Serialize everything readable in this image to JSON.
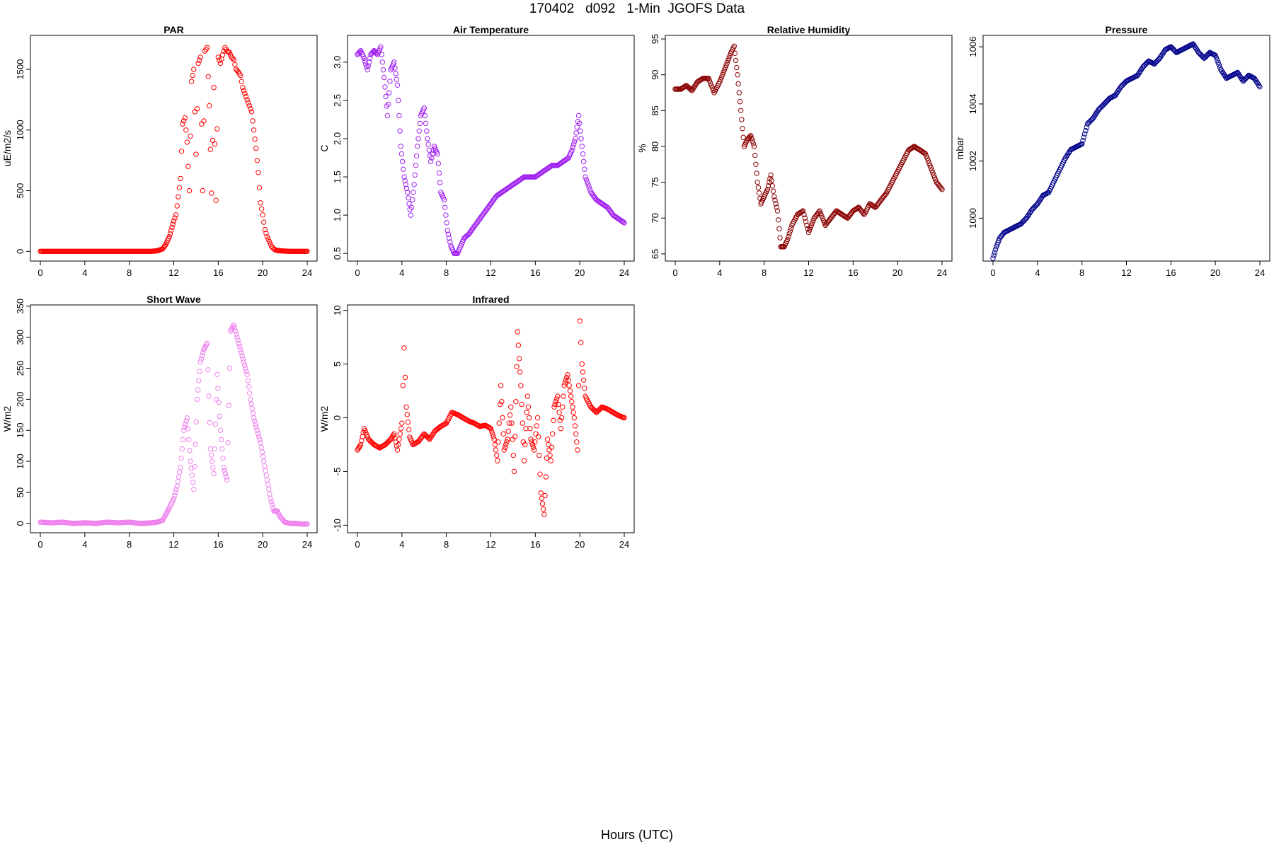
{
  "title": "170402   d092   1-Min  JGOFS Data",
  "xlabel": "Hours (UTC)",
  "colors": {
    "red": "#ff0000",
    "purple": "#a020f0",
    "darkred": "#8b0000",
    "navy": "#00008b",
    "violet": "#ee82ee"
  },
  "chart_data": [
    {
      "type": "scatter",
      "title": "PAR",
      "ylabel": "uE/m2/s",
      "color": "#ff0000",
      "xlim": [
        0,
        24
      ],
      "xticks": [
        0,
        4,
        8,
        12,
        16,
        20,
        24
      ],
      "ylim": [
        -80,
        1780
      ],
      "yticks": [
        0,
        500,
        1000,
        1500
      ],
      "x": [
        0,
        1,
        2,
        3,
        4,
        5,
        6,
        7,
        8,
        9,
        10,
        10.5,
        11,
        11.3,
        11.6,
        12,
        12.2,
        12.4,
        12.6,
        12.8,
        13,
        13.2,
        13.4,
        13.6,
        13.8,
        14,
        14.2,
        14.4,
        14.6,
        14.8,
        15,
        15.2,
        15.4,
        15.6,
        15.8,
        16,
        16.2,
        16.4,
        16.6,
        16.8,
        17,
        17.2,
        17.4,
        17.6,
        17.8,
        18,
        18.2,
        18.4,
        18.6,
        18.8,
        19,
        19.2,
        19.4,
        19.6,
        19.8,
        20,
        20.2,
        20.4,
        20.6,
        20.8,
        21,
        21.2,
        21.5,
        22,
        22.5,
        23,
        23.5,
        24
      ],
      "y": [
        0,
        0,
        0,
        0,
        0,
        0,
        0,
        0,
        0,
        0,
        0,
        5,
        20,
        60,
        120,
        250,
        300,
        450,
        600,
        1050,
        1100,
        900,
        500,
        1400,
        1500,
        800,
        1550,
        1600,
        500,
        1650,
        1680,
        1200,
        480,
        1350,
        420,
        1600,
        1550,
        1620,
        1680,
        1650,
        1640,
        1600,
        1580,
        1500,
        1480,
        1450,
        1350,
        1300,
        1250,
        1200,
        1150,
        1000,
        850,
        650,
        400,
        300,
        180,
        120,
        80,
        40,
        20,
        10,
        5,
        2,
        0,
        0,
        0,
        0
      ]
    },
    {
      "type": "scatter",
      "title": "Air Temperature",
      "ylabel": "C",
      "color": "#a020f0",
      "xlim": [
        0,
        24
      ],
      "xticks": [
        0,
        4,
        8,
        12,
        16,
        20,
        24
      ],
      "ylim": [
        0.4,
        3.35
      ],
      "yticks": [
        0.5,
        1.0,
        1.5,
        2.0,
        2.5,
        3.0
      ],
      "yticklabels": [
        "0.5",
        "1.0",
        "1.5",
        "2.0",
        "2.5",
        "3.0"
      ],
      "x": [
        0,
        0.3,
        0.6,
        0.9,
        1.2,
        1.5,
        1.8,
        2.1,
        2.4,
        2.7,
        3.0,
        3.3,
        3.6,
        3.9,
        4.2,
        4.5,
        4.8,
        5.1,
        5.4,
        5.7,
        6.0,
        6.3,
        6.6,
        6.9,
        7.2,
        7.5,
        7.8,
        8.1,
        8.4,
        8.7,
        9.0,
        9.3,
        9.6,
        10,
        10.5,
        11,
        11.5,
        12,
        12.5,
        13,
        13.5,
        14,
        14.5,
        15,
        15.5,
        16,
        16.5,
        17,
        17.5,
        18,
        18.5,
        19,
        19.3,
        19.6,
        19.9,
        20.2,
        20.5,
        21,
        21.5,
        22,
        22.5,
        23,
        23.5,
        24
      ],
      "y": [
        3.1,
        3.15,
        3.05,
        2.9,
        3.1,
        3.15,
        3.1,
        3.2,
        2.8,
        2.3,
        2.9,
        3.0,
        2.7,
        1.9,
        1.5,
        1.3,
        1.0,
        1.4,
        1.9,
        2.3,
        2.4,
        2.0,
        1.7,
        1.9,
        1.8,
        1.3,
        1.2,
        0.8,
        0.6,
        0.5,
        0.5,
        0.6,
        0.7,
        0.75,
        0.85,
        0.95,
        1.05,
        1.15,
        1.25,
        1.3,
        1.35,
        1.4,
        1.45,
        1.5,
        1.5,
        1.5,
        1.55,
        1.6,
        1.65,
        1.65,
        1.7,
        1.75,
        1.85,
        2.0,
        2.3,
        1.9,
        1.5,
        1.3,
        1.2,
        1.15,
        1.1,
        1.0,
        0.95,
        0.9
      ]
    },
    {
      "type": "scatter",
      "title": "Relative Humidity",
      "ylabel": "%",
      "color": "#8b0000",
      "xlim": [
        0,
        24
      ],
      "xticks": [
        0,
        4,
        8,
        12,
        16,
        20,
        24
      ],
      "ylim": [
        64,
        95.5
      ],
      "yticks": [
        65,
        70,
        75,
        80,
        85,
        90,
        95
      ],
      "x": [
        0,
        0.5,
        1,
        1.5,
        2,
        2.5,
        3,
        3.5,
        4,
        4.5,
        5,
        5.3,
        5.6,
        5.9,
        6.2,
        6.5,
        6.8,
        7.1,
        7.4,
        7.7,
        8,
        8.3,
        8.6,
        8.9,
        9.2,
        9.5,
        9.8,
        10.1,
        10.5,
        11,
        11.5,
        12,
        12.5,
        13,
        13.5,
        14,
        14.5,
        15,
        15.5,
        16,
        16.5,
        17,
        17.5,
        18,
        18.5,
        19,
        19.5,
        20,
        20.5,
        21,
        21.5,
        22,
        22.5,
        23,
        23.5,
        24
      ],
      "y": [
        88,
        88,
        88.5,
        87.8,
        89,
        89.5,
        89.5,
        87.5,
        89,
        91,
        93,
        94,
        90,
        85,
        80,
        81,
        81.5,
        80,
        75,
        72,
        73,
        74,
        76,
        73,
        71,
        66,
        66,
        67,
        69,
        70.5,
        71,
        68,
        70,
        71,
        69,
        70,
        71,
        70.5,
        70,
        71,
        71.5,
        70.5,
        72,
        71.5,
        72.5,
        73.5,
        75,
        76.5,
        78,
        79.5,
        80,
        79.5,
        79,
        77,
        75,
        74
      ]
    },
    {
      "type": "scatter",
      "title": "Pressure",
      "ylabel": "mbar",
      "color": "#00008b",
      "xlim": [
        0,
        24
      ],
      "xticks": [
        0,
        4,
        8,
        12,
        16,
        20,
        24
      ],
      "ylim": [
        998.5,
        1006.4
      ],
      "yticks": [
        1000,
        1002,
        1004,
        1006
      ],
      "x": [
        0,
        0.3,
        0.6,
        1,
        1.5,
        2,
        2.5,
        3,
        3.5,
        4,
        4.5,
        5,
        5.5,
        6,
        6.5,
        7,
        7.5,
        8,
        8.5,
        9,
        9.5,
        10,
        10.5,
        11,
        11.5,
        12,
        12.5,
        13,
        13.5,
        14,
        14.5,
        15,
        15.5,
        16,
        16.5,
        17,
        17.5,
        18,
        18.5,
        19,
        19.5,
        20,
        20.5,
        21,
        21.5,
        22,
        22.5,
        23,
        23.5,
        24
      ],
      "y": [
        998.6,
        999.0,
        999.3,
        999.5,
        999.6,
        999.7,
        999.8,
        1000.0,
        1000.3,
        1000.5,
        1000.8,
        1000.9,
        1001.3,
        1001.7,
        1002.1,
        1002.4,
        1002.5,
        1002.6,
        1003.3,
        1003.5,
        1003.8,
        1004.0,
        1004.2,
        1004.3,
        1004.6,
        1004.8,
        1004.9,
        1005.0,
        1005.3,
        1005.5,
        1005.4,
        1005.6,
        1005.9,
        1006.0,
        1005.8,
        1005.9,
        1006.0,
        1006.1,
        1005.8,
        1005.6,
        1005.8,
        1005.7,
        1005.2,
        1004.9,
        1005.0,
        1005.1,
        1004.8,
        1005.0,
        1004.9,
        1004.6
      ]
    },
    {
      "type": "scatter",
      "title": "Short Wave",
      "ylabel": "W/m2",
      "color": "#ee82ee",
      "xlim": [
        0,
        24
      ],
      "xticks": [
        0,
        4,
        8,
        12,
        16,
        20,
        24
      ],
      "ylim": [
        -15,
        352
      ],
      "yticks": [
        0,
        50,
        100,
        150,
        200,
        250,
        300,
        350
      ],
      "x": [
        0,
        1,
        2,
        3,
        4,
        5,
        6,
        7,
        8,
        9,
        10,
        10.5,
        11,
        11.3,
        11.6,
        12,
        12.3,
        12.6,
        12.9,
        13.2,
        13.5,
        13.8,
        14.1,
        14.4,
        14.7,
        15,
        15.3,
        15.6,
        15.9,
        16.2,
        16.5,
        16.8,
        17.1,
        17.4,
        17.7,
        18,
        18.3,
        18.6,
        18.9,
        19.2,
        19.5,
        19.8,
        20.1,
        20.4,
        20.7,
        21,
        21.3,
        21.6,
        22,
        22.5,
        23,
        23.5,
        24
      ],
      "y": [
        2,
        1,
        2,
        0,
        1,
        0,
        2,
        1,
        2,
        0,
        1,
        2,
        5,
        15,
        25,
        40,
        60,
        90,
        150,
        170,
        100,
        55,
        200,
        260,
        280,
        290,
        120,
        80,
        240,
        150,
        90,
        70,
        310,
        320,
        300,
        280,
        260,
        240,
        200,
        170,
        150,
        130,
        100,
        70,
        40,
        20,
        20,
        10,
        2,
        0,
        0,
        -1,
        -1
      ]
    },
    {
      "type": "scatter",
      "title": "Infrared",
      "ylabel": "W/m2",
      "color": "#ff0000",
      "xlim": [
        0,
        24
      ],
      "xticks": [
        0,
        4,
        8,
        12,
        16,
        20,
        24
      ],
      "ylim": [
        -10.7,
        10.5
      ],
      "yticks": [
        -10,
        -5,
        0,
        5,
        10
      ],
      "x": [
        0,
        0.3,
        0.6,
        1,
        1.5,
        2,
        2.5,
        3,
        3.3,
        3.6,
        4,
        4.2,
        4.4,
        4.7,
        5,
        5.5,
        6,
        6.5,
        7,
        7.5,
        8,
        8.5,
        9,
        9.5,
        10,
        10.5,
        11,
        11.5,
        12,
        12.3,
        12.6,
        12.9,
        13.2,
        13.5,
        13.8,
        14.1,
        14.4,
        14.7,
        15,
        15.3,
        15.6,
        15.9,
        16.2,
        16.5,
        16.8,
        17.1,
        17.4,
        17.7,
        18,
        18.3,
        18.6,
        18.9,
        19.2,
        19.5,
        19.8,
        20,
        20.2,
        20.5,
        21,
        21.5,
        22,
        22.5,
        23,
        23.5,
        24
      ],
      "y": [
        -3,
        -2.5,
        -1,
        -2,
        -2.5,
        -2.8,
        -2.5,
        -2,
        -1.5,
        -3,
        -0.5,
        6.5,
        1,
        -1.8,
        -2.5,
        -2.2,
        -1.5,
        -2,
        -1.2,
        -0.8,
        -0.5,
        0.5,
        0.3,
        0,
        -0.3,
        -0.5,
        -0.8,
        -0.7,
        -1,
        -2,
        -4,
        3,
        -3,
        -2,
        1,
        -5,
        8,
        3,
        -4,
        2,
        -2,
        -3,
        0,
        -7,
        -9,
        -2,
        -4,
        1,
        2,
        -1,
        3,
        4,
        2,
        0,
        -3,
        9,
        5,
        2,
        1,
        0.5,
        1,
        0.8,
        0.5,
        0.2,
        0
      ]
    }
  ]
}
